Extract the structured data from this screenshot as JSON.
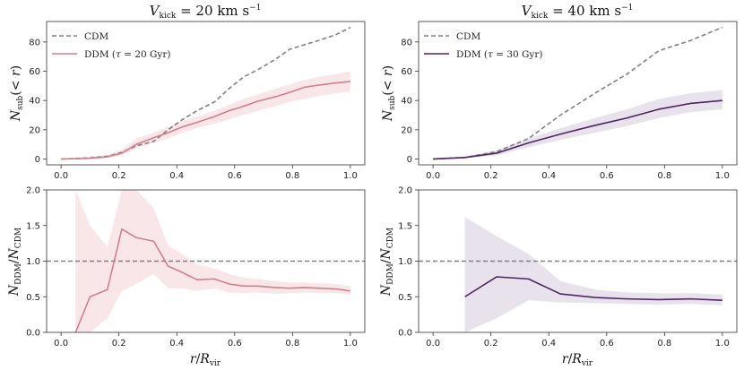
{
  "chart_data": [
    {
      "type": "line",
      "title": "V_kick = 20 km s^-1",
      "xlabel": "",
      "ylabel": "N_sub(< r)",
      "xlim": [
        -0.05,
        1.05
      ],
      "ylim": [
        -4,
        94
      ],
      "xticks": [
        0.0,
        0.2,
        0.4,
        0.6,
        0.8,
        1.0
      ],
      "xtick_labels": [
        "0.0",
        "0.2",
        "0.4",
        "0.6",
        "0.8",
        "1.0"
      ],
      "yticks": [
        0,
        20,
        40,
        60,
        80
      ],
      "ytick_labels": [
        "0",
        "20",
        "40",
        "60",
        "80"
      ],
      "legend": {
        "position": "top-left",
        "entries": [
          "CDM",
          "DDM (τ = 20 Gyr)"
        ]
      },
      "series": [
        {
          "name": "CDM",
          "style": "dashed",
          "color": "#808080",
          "x": [
            0,
            0.05,
            0.1,
            0.16,
            0.21,
            0.26,
            0.32,
            0.37,
            0.42,
            0.47,
            0.53,
            0.58,
            0.63,
            0.68,
            0.74,
            0.79,
            0.84,
            0.89,
            0.95,
            1.0
          ],
          "y": [
            0,
            0.3,
            0.8,
            1.8,
            4.5,
            9,
            12,
            20,
            27,
            33,
            39,
            48,
            56,
            61,
            68,
            75,
            78,
            81,
            85,
            90
          ]
        },
        {
          "name": "DDM (τ = 20 Gyr)",
          "style": "solid",
          "color": "#d0808a",
          "band_color": "#f9e6e9",
          "x": [
            0,
            0.05,
            0.1,
            0.16,
            0.21,
            0.26,
            0.32,
            0.37,
            0.42,
            0.47,
            0.53,
            0.58,
            0.63,
            0.68,
            0.74,
            0.79,
            0.84,
            0.89,
            0.95,
            1.0
          ],
          "y": [
            0,
            0.2,
            0.5,
            1.5,
            4,
            10,
            14.5,
            18,
            22,
            25,
            29,
            33,
            36,
            39.5,
            42.5,
            45.5,
            49,
            50.5,
            52,
            53
          ],
          "lower": [
            0,
            0,
            0,
            0.5,
            2.5,
            7,
            11,
            14,
            18,
            21,
            24,
            27,
            30,
            33,
            36,
            39,
            41,
            43,
            45,
            46
          ],
          "upper": [
            0.5,
            0.8,
            1.5,
            3,
            6.5,
            14,
            18,
            22,
            26,
            29,
            33,
            37,
            41,
            44,
            48,
            51,
            54,
            56,
            58,
            60
          ]
        }
      ]
    },
    {
      "type": "line",
      "title": "V_kick = 40 km s^-1",
      "xlabel": "",
      "ylabel": "N_sub(< r)",
      "xlim": [
        -0.05,
        1.05
      ],
      "ylim": [
        -4,
        94
      ],
      "xticks": [
        0.0,
        0.2,
        0.4,
        0.6,
        0.8,
        1.0
      ],
      "xtick_labels": [
        "0.0",
        "0.2",
        "0.4",
        "0.6",
        "0.8",
        "1.0"
      ],
      "yticks": [
        0,
        20,
        40,
        60,
        80
      ],
      "ytick_labels": [
        "0",
        "20",
        "40",
        "60",
        "80"
      ],
      "legend": {
        "position": "top-left",
        "entries": [
          "CDM",
          "DDM (τ = 30 Gyr)"
        ]
      },
      "series": [
        {
          "name": "CDM",
          "style": "dashed",
          "color": "#808080",
          "x": [
            0,
            0.11,
            0.22,
            0.33,
            0.44,
            0.56,
            0.67,
            0.78,
            0.89,
            1.0
          ],
          "y": [
            0,
            1,
            5,
            14,
            30,
            45,
            58,
            74,
            81,
            90
          ]
        },
        {
          "name": "DDM (τ = 30 Gyr)",
          "style": "solid",
          "color": "#4f2660",
          "band_color": "#e7e2ec",
          "x": [
            0,
            0.11,
            0.22,
            0.33,
            0.44,
            0.56,
            0.67,
            0.78,
            0.89,
            1.0
          ],
          "y": [
            0,
            1,
            4,
            11,
            17,
            23,
            28,
            34,
            38,
            40
          ],
          "lower": [
            0,
            0.5,
            2.5,
            8,
            13,
            18,
            22.5,
            28,
            32,
            34
          ],
          "upper": [
            0.5,
            1.8,
            6,
            14,
            21,
            28,
            34,
            41,
            45,
            47
          ]
        }
      ]
    },
    {
      "type": "line",
      "title": "",
      "xlabel": "r/R_vir",
      "ylabel": "N_DDM / N_CDM",
      "xlim": [
        -0.05,
        1.05
      ],
      "ylim": [
        0,
        2.0
      ],
      "xticks": [
        0.0,
        0.2,
        0.4,
        0.6,
        0.8,
        1.0
      ],
      "xtick_labels": [
        "0.0",
        "0.2",
        "0.4",
        "0.6",
        "0.8",
        "1.0"
      ],
      "yticks": [
        0.0,
        0.5,
        1.0,
        1.5,
        2.0
      ],
      "ytick_labels": [
        "0.0",
        "0.5",
        "1.0",
        "1.5",
        "2.0"
      ],
      "reference_line": 1.0,
      "series": [
        {
          "name": "ratio",
          "style": "solid",
          "color": "#d0808a",
          "band_color": "#f9e6e9",
          "x": [
            0.05,
            0.1,
            0.16,
            0.21,
            0.26,
            0.32,
            0.37,
            0.42,
            0.47,
            0.53,
            0.58,
            0.63,
            0.68,
            0.74,
            0.79,
            0.84,
            0.89,
            0.95,
            1.0
          ],
          "y": [
            0,
            0.5,
            0.6,
            1.45,
            1.33,
            1.28,
            0.93,
            0.84,
            0.74,
            0.75,
            0.68,
            0.65,
            0.65,
            0.63,
            0.62,
            0.63,
            0.62,
            0.61,
            0.58
          ],
          "lower": [
            0,
            0,
            0.2,
            0.58,
            0.68,
            0.82,
            0.62,
            0.62,
            0.58,
            0.62,
            0.56,
            0.55,
            0.56,
            0.54,
            0.55,
            0.56,
            0.55,
            0.55,
            0.53
          ],
          "upper": [
            2.0,
            1.5,
            1.2,
            2.0,
            2.0,
            1.75,
            1.22,
            1.1,
            0.95,
            0.9,
            0.82,
            0.77,
            0.75,
            0.72,
            0.7,
            0.7,
            0.69,
            0.68,
            0.65
          ]
        }
      ]
    },
    {
      "type": "line",
      "title": "",
      "xlabel": "r/R_vir",
      "ylabel": "N_DDM / N_CDM",
      "xlim": [
        -0.05,
        1.05
      ],
      "ylim": [
        0,
        2.0
      ],
      "xticks": [
        0.0,
        0.2,
        0.4,
        0.6,
        0.8,
        1.0
      ],
      "xtick_labels": [
        "0.0",
        "0.2",
        "0.4",
        "0.6",
        "0.8",
        "1.0"
      ],
      "yticks": [
        0.0,
        0.5,
        1.0,
        1.5,
        2.0
      ],
      "ytick_labels": [
        "0.0",
        "0.5",
        "1.0",
        "1.5",
        "2.0"
      ],
      "reference_line": 1.0,
      "series": [
        {
          "name": "ratio",
          "style": "solid",
          "color": "#4f2660",
          "band_color": "#e7e2ec",
          "x": [
            0.11,
            0.22,
            0.33,
            0.44,
            0.56,
            0.67,
            0.78,
            0.89,
            1.0
          ],
          "y": [
            0.5,
            0.78,
            0.75,
            0.54,
            0.49,
            0.47,
            0.46,
            0.47,
            0.45
          ],
          "lower": [
            0,
            0.2,
            0.45,
            0.42,
            0.41,
            0.4,
            0.39,
            0.4,
            0.38
          ],
          "upper": [
            1.62,
            1.35,
            1.1,
            0.72,
            0.6,
            0.56,
            0.55,
            0.55,
            0.53
          ]
        }
      ]
    }
  ]
}
